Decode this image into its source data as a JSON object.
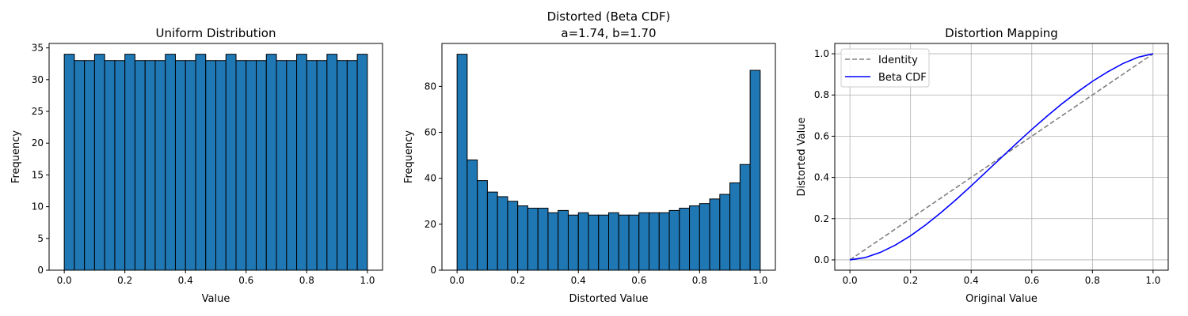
{
  "chart_data": [
    {
      "type": "bar",
      "title": "Uniform Distribution",
      "xlabel": "Value",
      "ylabel": "Frequency",
      "xlim": [
        -0.05,
        1.05
      ],
      "ylim": [
        0,
        35.7
      ],
      "xticks": [
        0.0,
        0.2,
        0.4,
        0.6,
        0.8,
        1.0
      ],
      "xtick_labels": [
        "0.0",
        "0.2",
        "0.4",
        "0.6",
        "0.8",
        "1.0"
      ],
      "yticks": [
        0,
        5,
        10,
        15,
        20,
        25,
        30,
        35
      ],
      "ytick_labels": [
        "0",
        "5",
        "10",
        "15",
        "20",
        "25",
        "30",
        "35"
      ],
      "bin_edges": [
        0,
        1
      ],
      "values": [
        34,
        33,
        33,
        34,
        33,
        33,
        34,
        33,
        33,
        33,
        34,
        33,
        33,
        34,
        33,
        33,
        34,
        33,
        33,
        33,
        34,
        33,
        33,
        34,
        33,
        33,
        34,
        33,
        33,
        34
      ],
      "bar_color": "#1f77b4",
      "edge_color": "#000000",
      "grid": false
    },
    {
      "type": "bar",
      "title": "Distorted (Beta CDF)",
      "subtitle": "a=1.74, b=1.70",
      "xlabel": "Distorted Value",
      "ylabel": "Frequency",
      "xlim": [
        -0.05,
        1.05
      ],
      "ylim": [
        0,
        98.7
      ],
      "xticks": [
        0.0,
        0.2,
        0.4,
        0.6,
        0.8,
        1.0
      ],
      "xtick_labels": [
        "0.0",
        "0.2",
        "0.4",
        "0.6",
        "0.8",
        "1.0"
      ],
      "yticks": [
        0,
        20,
        40,
        60,
        80
      ],
      "ytick_labels": [
        "0",
        "20",
        "40",
        "60",
        "80"
      ],
      "bin_edges": [
        0,
        1
      ],
      "values": [
        94,
        48,
        39,
        34,
        32,
        30,
        28,
        27,
        27,
        25,
        26,
        24,
        25,
        24,
        24,
        25,
        24,
        24,
        25,
        25,
        25,
        26,
        27,
        28,
        29,
        31,
        33,
        38,
        46,
        87
      ],
      "bar_color": "#1f77b4",
      "edge_color": "#000000",
      "grid": false
    },
    {
      "type": "line",
      "title": "Distortion Mapping",
      "xlabel": "Original Value",
      "ylabel": "Distorted Value",
      "xlim": [
        -0.05,
        1.05
      ],
      "ylim": [
        -0.05,
        1.05
      ],
      "xticks": [
        0.0,
        0.2,
        0.4,
        0.6,
        0.8,
        1.0
      ],
      "xtick_labels": [
        "0.0",
        "0.2",
        "0.4",
        "0.6",
        "0.8",
        "1.0"
      ],
      "yticks": [
        0.0,
        0.2,
        0.4,
        0.6,
        0.8,
        1.0
      ],
      "ytick_labels": [
        "0.0",
        "0.2",
        "0.4",
        "0.6",
        "0.8",
        "1.0"
      ],
      "grid": true,
      "legend_position": "upper-left",
      "series": [
        {
          "name": "Identity",
          "color": "#808080",
          "style": "dashed",
          "x": [
            0.0,
            1.0
          ],
          "y": [
            0.0,
            1.0
          ]
        },
        {
          "name": "Beta CDF",
          "color": "#0000ff",
          "style": "solid",
          "x": [
            0.0,
            0.05,
            0.1,
            0.15,
            0.2,
            0.25,
            0.3,
            0.35,
            0.4,
            0.45,
            0.5,
            0.55,
            0.6,
            0.65,
            0.7,
            0.75,
            0.8,
            0.85,
            0.9,
            0.95,
            1.0
          ],
          "y": [
            0.0,
            0.011,
            0.036,
            0.072,
            0.117,
            0.17,
            0.229,
            0.292,
            0.359,
            0.428,
            0.497,
            0.566,
            0.633,
            0.697,
            0.758,
            0.814,
            0.866,
            0.912,
            0.952,
            0.983,
            1.0
          ]
        }
      ]
    }
  ]
}
